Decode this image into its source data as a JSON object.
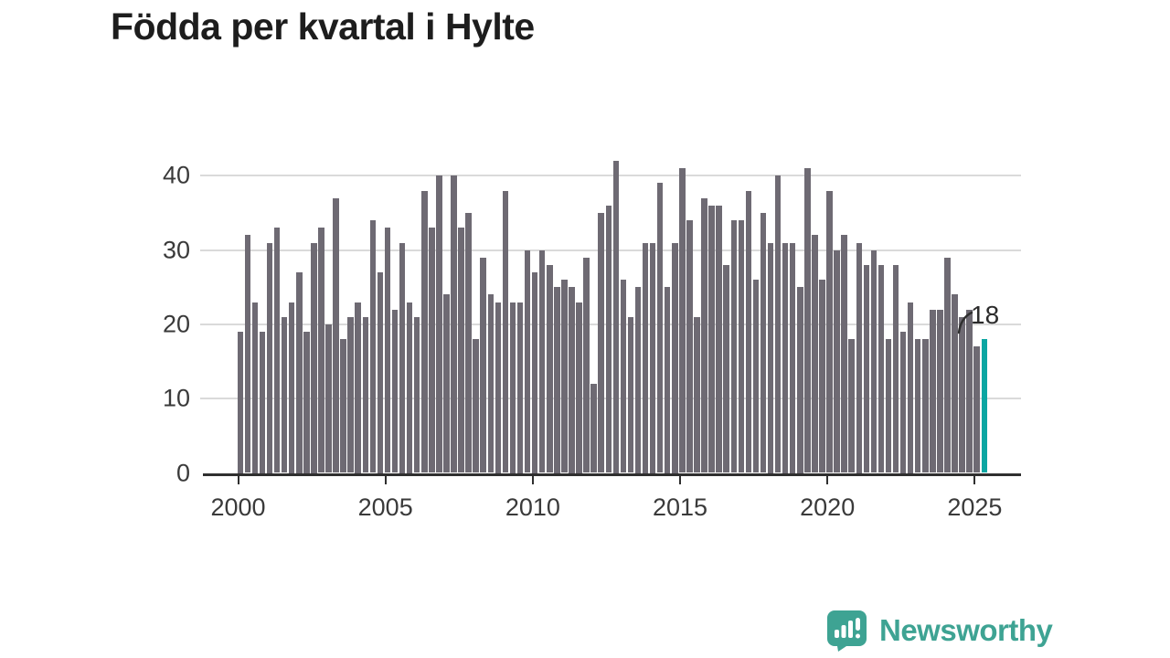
{
  "title": "Födda per kvartal i Hylte",
  "annotation": {
    "label": "18"
  },
  "logo": {
    "text": "Newsworthy"
  },
  "chart_data": {
    "type": "bar",
    "title": "Födda per kvartal i Hylte",
    "x_start": "2000-Q1",
    "x_end": "2025-Q2",
    "x_tick_labels": [
      "2000",
      "2005",
      "2010",
      "2015",
      "2020",
      "2025"
    ],
    "y_tick_labels": [
      "0",
      "10",
      "20",
      "30",
      "40"
    ],
    "y_ticks": [
      0,
      10,
      20,
      30,
      40
    ],
    "ylim": [
      0,
      44
    ],
    "grid": "horizontal",
    "legend": "none",
    "values": [
      19,
      32,
      23,
      19,
      31,
      33,
      21,
      23,
      27,
      19,
      31,
      33,
      20,
      37,
      18,
      21,
      23,
      21,
      34,
      27,
      33,
      22,
      31,
      23,
      21,
      38,
      33,
      40,
      24,
      40,
      33,
      35,
      18,
      29,
      24,
      23,
      38,
      23,
      23,
      30,
      27,
      30,
      28,
      25,
      26,
      25,
      23,
      29,
      12,
      35,
      36,
      42,
      26,
      21,
      25,
      31,
      31,
      39,
      25,
      31,
      41,
      34,
      21,
      37,
      36,
      36,
      28,
      34,
      34,
      38,
      26,
      35,
      31,
      40,
      31,
      31,
      25,
      41,
      32,
      26,
      38,
      30,
      32,
      18,
      31,
      28,
      30,
      28,
      18,
      28,
      19,
      23,
      18,
      18,
      22,
      22,
      29,
      24,
      21,
      22,
      17,
      18
    ],
    "highlighted_last_value": 18,
    "colors": {
      "bar": "#6e6a73",
      "highlight": "#0aa6a2",
      "grid": "#dadada",
      "axis": "#2f2f2f",
      "text": "#3a3a3a",
      "title": "#1d1d1d",
      "logo": "#3ea393"
    }
  }
}
